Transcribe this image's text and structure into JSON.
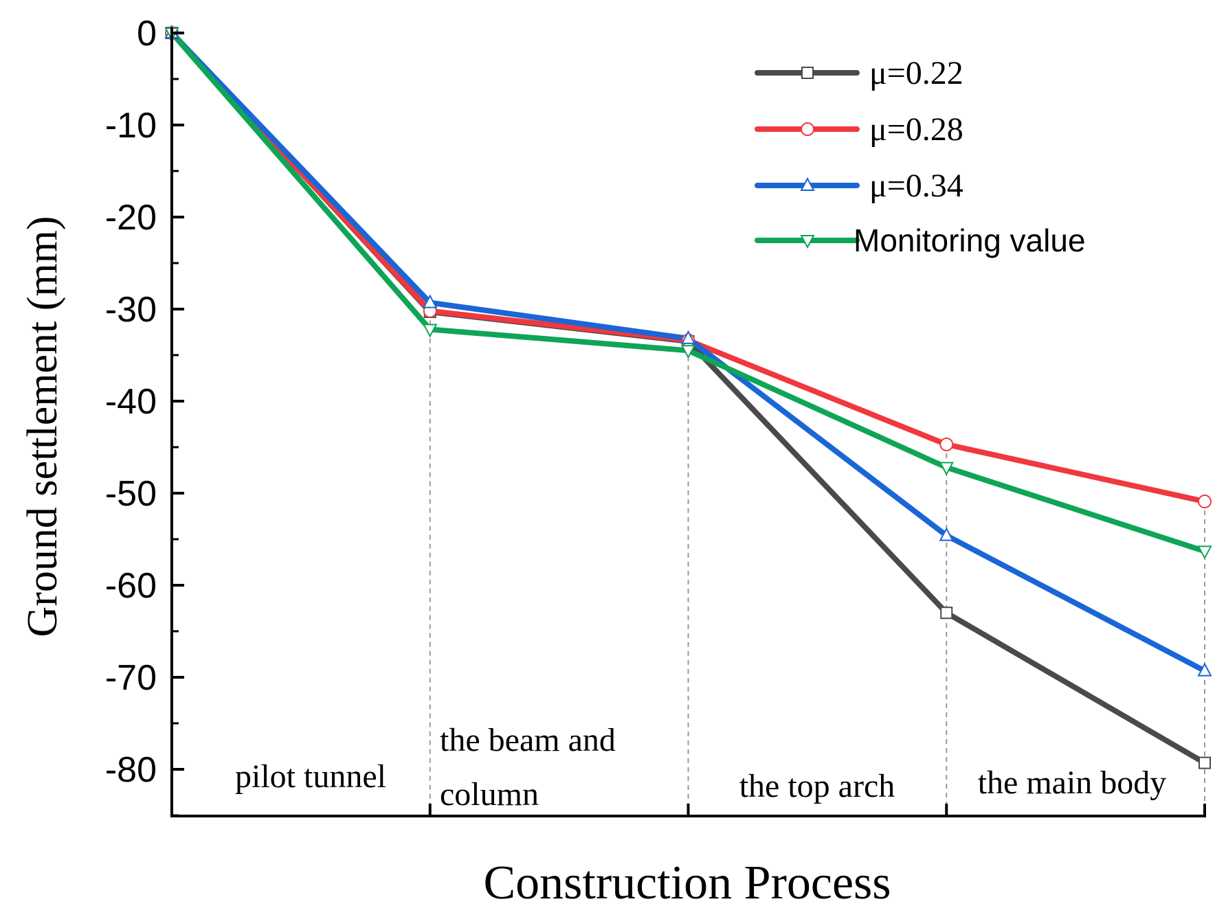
{
  "chart_data": {
    "type": "line",
    "title": "",
    "xlabel": "Construction Process",
    "ylabel": "Ground settlement (mm)",
    "ylim": [
      -85,
      0
    ],
    "yticks": [
      0,
      -10,
      -20,
      -30,
      -40,
      -50,
      -60,
      -70,
      -80
    ],
    "ytick_labels": [
      "0",
      "-10",
      "-20",
      "-30",
      "-40",
      "-50",
      "-60",
      "-70",
      "-80"
    ],
    "x": [
      0,
      1,
      2,
      3,
      4
    ],
    "stages": [
      {
        "lines": [
          "pilot tunnel"
        ]
      },
      {
        "lines": [
          "the beam and",
          "column"
        ]
      },
      {
        "lines": [
          "the top arch"
        ]
      },
      {
        "lines": [
          "the main body"
        ]
      }
    ],
    "series": [
      {
        "name": "μ=0.22",
        "color": "#4a4a4a",
        "marker": "square",
        "values": [
          0,
          -30.3,
          -33.5,
          -63.0,
          -79.3
        ]
      },
      {
        "name": "μ=0.28",
        "color": "#f0383f",
        "marker": "circle",
        "values": [
          0,
          -30.2,
          -33.4,
          -44.7,
          -50.9
        ]
      },
      {
        "name": "μ=0.34",
        "color": "#1a66d6",
        "marker": "triangle-up",
        "values": [
          0,
          -29.3,
          -33.2,
          -54.6,
          -69.3
        ]
      },
      {
        "name": "Monitoring value",
        "color": "#0fa556",
        "marker": "triangle-down",
        "values": [
          0,
          -32.2,
          -34.5,
          -47.2,
          -56.3
        ]
      }
    ],
    "legend": {
      "placement": "top-right"
    },
    "grid": false
  }
}
